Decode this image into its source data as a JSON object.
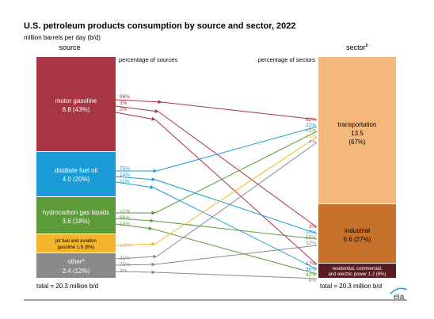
{
  "title": "U.S. petroleum products consumption by source and sector, 2022",
  "unit_label": "million barrels per day (b/d)",
  "source_header": "source",
  "sector_header": "sector",
  "sector_header_sup": "b",
  "pct_sources_label": "percentage of sources",
  "pct_sectors_label": "percentage of sectors",
  "source_total": "total = 20.3 million b/d",
  "sector_total": "total = 20.3 million b/d",
  "logo_text": "eia",
  "colors": {
    "motor": "#a83542",
    "distillate": "#1a9bd7",
    "hgl": "#5d9a3a",
    "jet": "#f3b52b",
    "other": "#8a8a8a",
    "transport": "#f4b87c",
    "industrial": "#c6722d",
    "residential": "#5a1c22"
  },
  "sources": [
    {
      "id": "motor",
      "name": "motor gasoline",
      "value_line": "8.8 (43%)",
      "pcts": [
        "96%",
        "3%",
        "2%"
      ]
    },
    {
      "id": "distillate",
      "name": "distillate fuel oil",
      "value_line": "4.0 (20%)",
      "pcts": [
        "75%",
        "14%",
        "11%"
      ]
    },
    {
      "id": "hgl",
      "name": "hydrocarbon gas liquids",
      "value_line": "3.6 (18%)",
      "pcts": [
        "<1%",
        "86%",
        "14%"
      ]
    },
    {
      "id": "jet",
      "name": "jet fuel and aviation",
      "value_line": "gasoline  1.6 (8%)",
      "pcts": [
        "100%"
      ]
    },
    {
      "id": "other",
      "name": "other",
      "name_sup": "a",
      "value_line": "2.4 (12%)",
      "pcts": [
        "21%",
        "75%",
        "3%"
      ]
    }
  ],
  "sectors": [
    {
      "id": "transport",
      "name": "transportation",
      "value": "13.5",
      "share": "(67%)",
      "pcts": [
        "62%",
        "22%",
        "<1%",
        "12%",
        "4%"
      ]
    },
    {
      "id": "industrial",
      "name": "industrial",
      "value_line": "5.6  (27%)",
      "pcts": [
        "3%",
        "10%",
        "55%",
        "32%"
      ]
    },
    {
      "id": "residential",
      "name_line1": "residential, commercial,",
      "name_line2": "and electric power  1.2  (6%)",
      "pcts": [
        "17%",
        "36%",
        "42%",
        "6%"
      ]
    }
  ]
}
